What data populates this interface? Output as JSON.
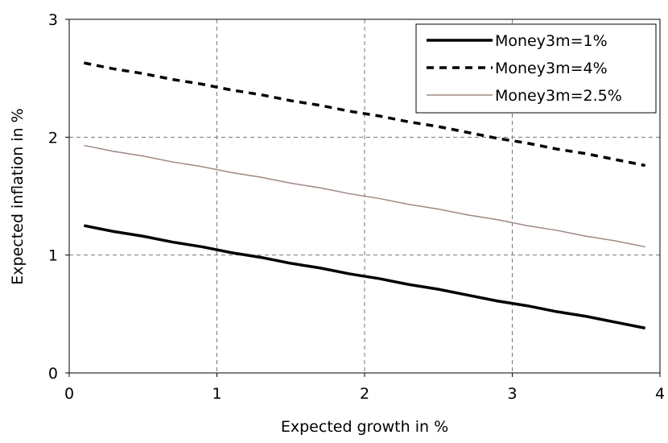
{
  "chart_data": {
    "type": "line",
    "x_label": "Expected growth in %",
    "y_label": "Expected inflation in %",
    "x": [
      0.1,
      0.3,
      0.5,
      0.7,
      0.9,
      1.1,
      1.3,
      1.5,
      1.7,
      1.9,
      2.1,
      2.3,
      2.5,
      2.7,
      2.9,
      3.1,
      3.3,
      3.5,
      3.7,
      3.9
    ],
    "series": [
      {
        "name": "Money3m=1%",
        "color": "#000000",
        "linestyle": "solid",
        "width": 3.5,
        "values": [
          1.25,
          1.2,
          1.16,
          1.11,
          1.07,
          1.02,
          0.98,
          0.93,
          0.89,
          0.84,
          0.8,
          0.75,
          0.71,
          0.66,
          0.61,
          0.57,
          0.52,
          0.48,
          0.43,
          0.38
        ]
      },
      {
        "name": "Money3m=4%",
        "color": "#000000",
        "linestyle": "dashed",
        "width": 3.5,
        "values": [
          2.63,
          2.58,
          2.54,
          2.49,
          2.45,
          2.4,
          2.36,
          2.31,
          2.27,
          2.22,
          2.18,
          2.13,
          2.09,
          2.04,
          1.99,
          1.95,
          1.9,
          1.86,
          1.81,
          1.76
        ]
      },
      {
        "name": "Money3m=2.5%",
        "color": "#a08880",
        "linestyle": "solid",
        "width": 1.5,
        "values": [
          1.93,
          1.88,
          1.84,
          1.79,
          1.75,
          1.7,
          1.66,
          1.61,
          1.57,
          1.52,
          1.48,
          1.43,
          1.39,
          1.34,
          1.3,
          1.25,
          1.21,
          1.16,
          1.12,
          1.07
        ]
      }
    ],
    "xlim": [
      0,
      4
    ],
    "xticks": [
      0,
      1,
      2,
      3,
      4
    ],
    "ylim": [
      0,
      3
    ],
    "yticks": [
      0,
      1,
      2,
      3
    ],
    "grid": true,
    "legend": "upper right"
  }
}
